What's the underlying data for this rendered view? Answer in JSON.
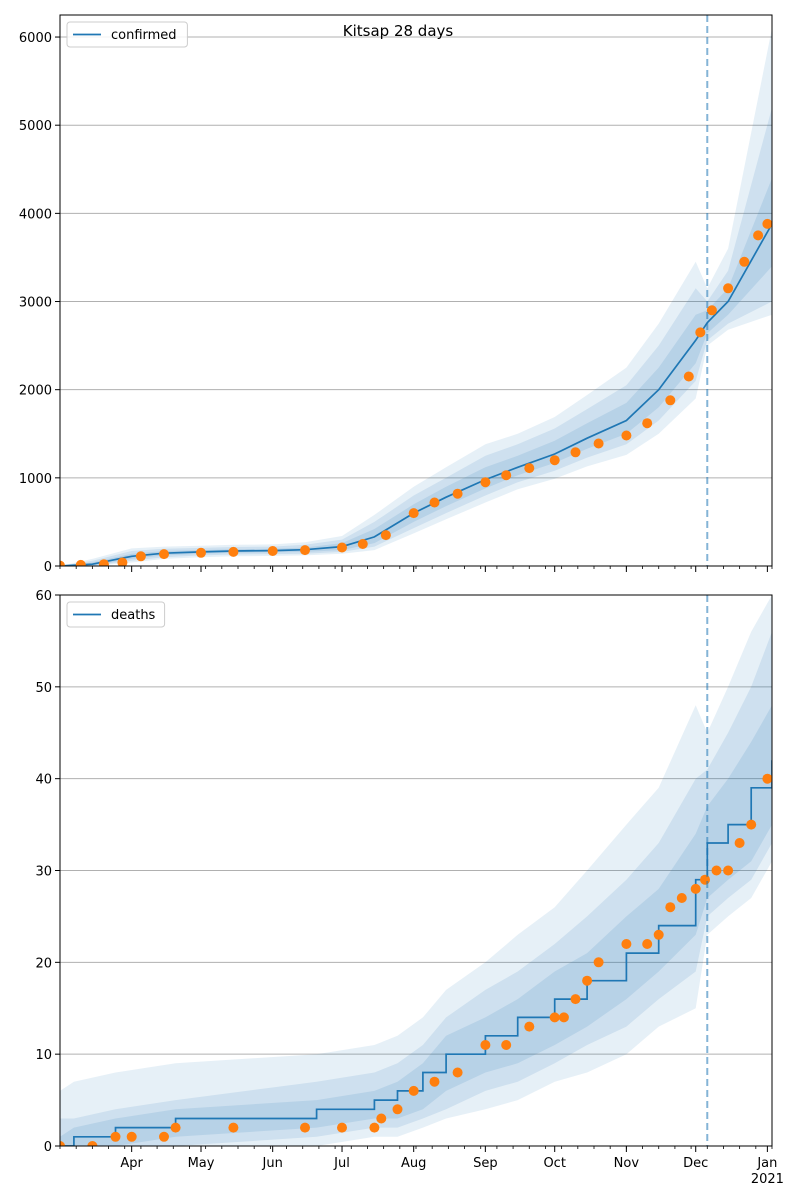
{
  "title": "Kitsap 28 days",
  "colors": {
    "model": "#1f77b4",
    "observed": "#ff7f0e",
    "band": "#1f77b4",
    "grid": "#b0b0b0",
    "forecast_line": "#1f77b4"
  },
  "x_axis": {
    "start": "2020-03-01",
    "end": "2021-01-03",
    "month_labels": [
      {
        "date": "2020-04-01",
        "label": "Apr"
      },
      {
        "date": "2020-05-01",
        "label": "May"
      },
      {
        "date": "2020-06-01",
        "label": "Jun"
      },
      {
        "date": "2020-07-01",
        "label": "Jul"
      },
      {
        "date": "2020-08-01",
        "label": "Aug"
      },
      {
        "date": "2020-09-01",
        "label": "Sep"
      },
      {
        "date": "2020-10-01",
        "label": "Oct"
      },
      {
        "date": "2020-11-01",
        "label": "Nov"
      },
      {
        "date": "2020-12-01",
        "label": "Dec"
      },
      {
        "date": "2021-01-01",
        "label": "Jan"
      }
    ],
    "year_label": "2021",
    "forecast_start": "2020-12-06"
  },
  "chart_data": [
    {
      "type": "line",
      "legend": "confirmed",
      "legend_position": "top-left",
      "grid": "horizontal",
      "ylim": [
        0,
        6250
      ],
      "yticks": [
        0,
        1000,
        2000,
        3000,
        4000,
        5000,
        6000
      ],
      "model": {
        "x": [
          "2020-03-01",
          "2020-03-15",
          "2020-04-01",
          "2020-04-15",
          "2020-05-01",
          "2020-05-15",
          "2020-06-01",
          "2020-06-15",
          "2020-07-01",
          "2020-07-15",
          "2020-08-01",
          "2020-08-15",
          "2020-09-01",
          "2020-09-15",
          "2020-10-01",
          "2020-10-15",
          "2020-11-01",
          "2020-11-15",
          "2020-12-01",
          "2020-12-06",
          "2020-12-15",
          "2021-01-03"
        ],
        "y": [
          0,
          20,
          110,
          145,
          160,
          170,
          175,
          185,
          220,
          330,
          600,
          780,
          980,
          1120,
          1270,
          1450,
          1650,
          2000,
          2560,
          2760,
          3000,
          3880
        ]
      },
      "bands": [
        {
          "lower": [
            0,
            5,
            80,
            120,
            140,
            150,
            155,
            160,
            180,
            260,
            500,
            680,
            880,
            1030,
            1170,
            1330,
            1500,
            1800,
            2300,
            2640,
            2850,
            3400
          ],
          "upper": [
            0,
            40,
            140,
            170,
            180,
            190,
            195,
            210,
            260,
            420,
            700,
            900,
            1120,
            1250,
            1420,
            1620,
            1850,
            2250,
            2850,
            2900,
            3150,
            4400
          ]
        },
        {
          "lower": [
            0,
            0,
            60,
            100,
            120,
            130,
            135,
            140,
            160,
            220,
            430,
            600,
            800,
            950,
            1080,
            1230,
            1380,
            1650,
            2100,
            2560,
            2750,
            3000
          ],
          "upper": [
            0,
            60,
            170,
            195,
            205,
            215,
            220,
            240,
            300,
            500,
            800,
            1000,
            1250,
            1380,
            1560,
            1780,
            2050,
            2500,
            3150,
            3000,
            3350,
            5200
          ]
        },
        {
          "lower": [
            0,
            0,
            40,
            80,
            100,
            110,
            115,
            120,
            140,
            180,
            370,
            530,
            720,
            870,
            990,
            1130,
            1260,
            1500,
            1900,
            2500,
            2680,
            2850
          ],
          "upper": [
            0,
            80,
            200,
            220,
            230,
            240,
            245,
            270,
            340,
            580,
            900,
            1120,
            1380,
            1500,
            1690,
            1940,
            2250,
            2750,
            3450,
            3150,
            3600,
            6100
          ]
        }
      ],
      "observed": {
        "x": [
          "2020-03-01",
          "2020-03-10",
          "2020-03-20",
          "2020-03-28",
          "2020-04-05",
          "2020-04-15",
          "2020-05-01",
          "2020-05-15",
          "2020-06-01",
          "2020-06-15",
          "2020-07-01",
          "2020-07-10",
          "2020-07-20",
          "2020-08-01",
          "2020-08-10",
          "2020-08-20",
          "2020-09-01",
          "2020-09-10",
          "2020-09-20",
          "2020-10-01",
          "2020-10-10",
          "2020-10-20",
          "2020-11-01",
          "2020-11-10",
          "2020-11-20",
          "2020-11-28",
          "2020-12-03",
          "2020-12-08",
          "2020-12-15",
          "2020-12-22",
          "2020-12-28",
          "2021-01-01"
        ],
        "y": [
          5,
          12,
          20,
          40,
          110,
          135,
          150,
          160,
          170,
          180,
          210,
          250,
          350,
          600,
          720,
          820,
          950,
          1030,
          1110,
          1200,
          1290,
          1390,
          1480,
          1620,
          1880,
          2150,
          2650,
          2900,
          3150,
          3450,
          3750,
          3880
        ]
      }
    },
    {
      "type": "line",
      "legend": "deaths",
      "legend_position": "top-left",
      "grid": "horizontal",
      "ylim": [
        0,
        60
      ],
      "yticks": [
        0,
        10,
        20,
        30,
        40,
        50,
        60
      ],
      "model": {
        "x": [
          "2020-03-01",
          "2020-03-07",
          "2020-03-25",
          "2020-04-20",
          "2020-06-20",
          "2020-07-15",
          "2020-07-25",
          "2020-08-05",
          "2020-08-15",
          "2020-09-01",
          "2020-09-15",
          "2020-10-01",
          "2020-10-15",
          "2020-11-01",
          "2020-11-15",
          "2020-12-01",
          "2020-12-06",
          "2020-12-15",
          "2020-12-25",
          "2021-01-03"
        ],
        "y": [
          0,
          1,
          2,
          3,
          4,
          5,
          6,
          8,
          10,
          12,
          14,
          16,
          18,
          21,
          24,
          29,
          33,
          35,
          39,
          42
        ]
      },
      "bands": [
        {
          "lower": [
            0,
            0,
            0,
            1,
            2,
            3,
            3,
            4,
            6,
            8,
            9,
            11,
            13,
            16,
            19,
            23,
            27,
            29,
            31,
            35
          ],
          "upper": [
            1,
            2,
            3,
            4,
            5,
            6,
            7,
            9,
            12,
            14,
            16,
            19,
            21,
            25,
            28,
            34,
            37,
            40,
            44,
            48
          ]
        },
        {
          "lower": [
            0,
            0,
            0,
            0,
            1,
            2,
            2,
            3,
            4,
            6,
            7,
            9,
            11,
            13,
            16,
            19,
            25,
            27,
            29,
            33
          ],
          "upper": [
            3,
            3,
            4,
            5,
            7,
            8,
            9,
            11,
            14,
            17,
            19,
            22,
            25,
            29,
            33,
            40,
            41,
            45,
            50,
            56
          ]
        },
        {
          "lower": [
            0,
            0,
            0,
            0,
            0,
            1,
            1,
            2,
            3,
            4,
            5,
            7,
            8,
            10,
            13,
            15,
            23,
            25,
            27,
            31
          ],
          "upper": [
            6,
            7,
            8,
            9,
            10,
            11,
            12,
            14,
            17,
            20,
            23,
            26,
            30,
            35,
            39,
            48,
            45,
            50,
            56,
            60
          ]
        }
      ],
      "observed": {
        "x": [
          "2020-03-01",
          "2020-03-15",
          "2020-03-25",
          "2020-04-01",
          "2020-04-15",
          "2020-04-20",
          "2020-05-15",
          "2020-06-15",
          "2020-07-01",
          "2020-07-15",
          "2020-07-18",
          "2020-07-25",
          "2020-08-01",
          "2020-08-10",
          "2020-08-20",
          "2020-09-01",
          "2020-09-10",
          "2020-09-20",
          "2020-10-01",
          "2020-10-05",
          "2020-10-10",
          "2020-10-15",
          "2020-10-20",
          "2020-11-01",
          "2020-11-10",
          "2020-11-15",
          "2020-11-20",
          "2020-11-25",
          "2020-12-01",
          "2020-12-05",
          "2020-12-10",
          "2020-12-15",
          "2020-12-20",
          "2020-12-25",
          "2021-01-01"
        ],
        "y": [
          0,
          0,
          1,
          1,
          1,
          2,
          2,
          2,
          2,
          2,
          3,
          4,
          6,
          7,
          8,
          11,
          11,
          13,
          14,
          14,
          16,
          18,
          20,
          22,
          22,
          23,
          26,
          27,
          28,
          29,
          30,
          30,
          33,
          35,
          40
        ]
      }
    }
  ]
}
